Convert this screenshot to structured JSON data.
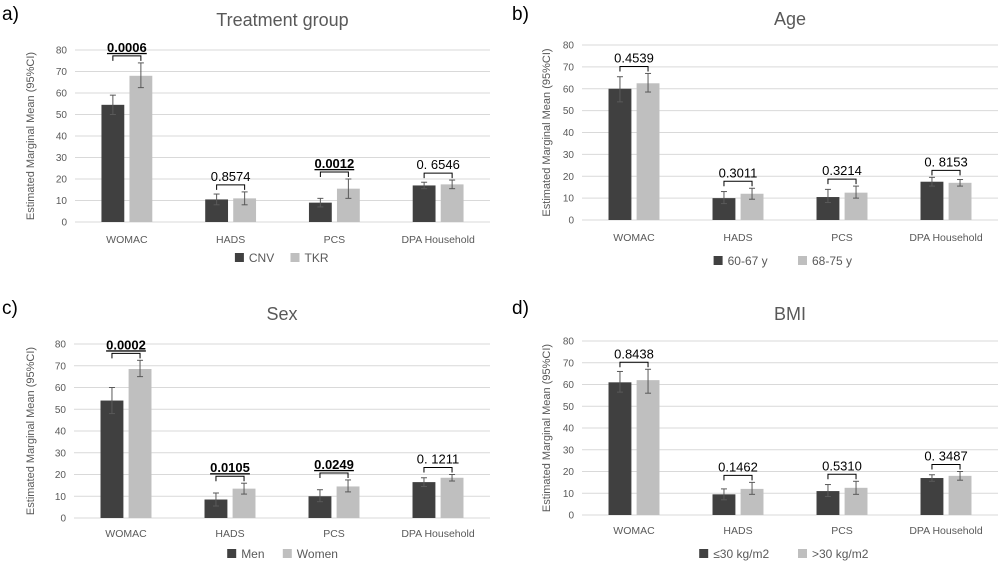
{
  "colors": {
    "series1": "#404040",
    "series2": "#bfbfbf",
    "grid": "#d9d9d9",
    "axis_text": "#595959",
    "title_text": "#595959"
  },
  "chart_data": [
    {
      "panel_label": "a)",
      "type": "bar",
      "title": "Treatment group",
      "ylabel": "Estimated Marginal Mean (95%CI)",
      "ylim": [
        0,
        80
      ],
      "yticks": [
        "0",
        "10",
        "20",
        "30",
        "40",
        "50",
        "60",
        "70",
        "80"
      ],
      "categories": [
        "WOMAC",
        "HADS",
        "PCS",
        "DPA Household"
      ],
      "series": [
        {
          "name": "CNV",
          "values": [
            54.5,
            10.5,
            9,
            17
          ],
          "ci_low": [
            50,
            8,
            7,
            15.5
          ],
          "ci_high": [
            59,
            13,
            11,
            18.5
          ]
        },
        {
          "name": "TKR",
          "values": [
            68,
            11,
            15.5,
            17.5
          ],
          "ci_low": [
            62.5,
            8,
            11,
            15.5
          ],
          "ci_high": [
            74,
            14,
            20,
            19.5
          ]
        }
      ],
      "p_values": [
        {
          "text": "0.0006",
          "bold": true
        },
        {
          "text": "0.8574",
          "bold": false
        },
        {
          "text": "0.0012",
          "bold": true
        },
        {
          "text": "0. 6546",
          "bold": false
        }
      ],
      "legend_position": "bottom"
    },
    {
      "panel_label": "b)",
      "type": "bar",
      "title": "Age",
      "ylabel": "Estimated Marginal Mean (95%CI)",
      "ylim": [
        0,
        80
      ],
      "yticks": [
        "0",
        "10",
        "20",
        "30",
        "40",
        "50",
        "60",
        "70",
        "80"
      ],
      "categories": [
        "WOMAC",
        "HADS",
        "PCS",
        "DPA Household"
      ],
      "series": [
        {
          "name": "60-67 y",
          "values": [
            60,
            10,
            10.5,
            17.5
          ],
          "ci_low": [
            54,
            7.5,
            8,
            15.5
          ],
          "ci_high": [
            65.5,
            13,
            14,
            19.5
          ]
        },
        {
          "name": "68-75 y",
          "values": [
            62.5,
            12,
            12.5,
            17
          ],
          "ci_low": [
            58.5,
            9.5,
            10,
            15.5
          ],
          "ci_high": [
            67,
            14.5,
            15.5,
            18.5
          ]
        }
      ],
      "p_values": [
        {
          "text": "0.4539",
          "bold": false
        },
        {
          "text": "0.3011",
          "bold": false
        },
        {
          "text": "0.3214",
          "bold": false
        },
        {
          "text": "0. 8153",
          "bold": false
        }
      ],
      "legend_position": "bottom"
    },
    {
      "panel_label": "c)",
      "type": "bar",
      "title": "Sex",
      "ylabel": "Estimated Marginal Mean (95%CI)",
      "ylim": [
        0,
        80
      ],
      "yticks": [
        "0",
        "10",
        "20",
        "30",
        "40",
        "50",
        "60",
        "70",
        "80"
      ],
      "categories": [
        "WOMAC",
        "HADS",
        "PCS",
        "DPA Household"
      ],
      "series": [
        {
          "name": "Men",
          "values": [
            54,
            8.5,
            10,
            16.5
          ],
          "ci_low": [
            48,
            5.5,
            7.5,
            14.5
          ],
          "ci_high": [
            60,
            11.5,
            13,
            18.5
          ]
        },
        {
          "name": "Women",
          "values": [
            68.5,
            13.5,
            14.5,
            18.5
          ],
          "ci_low": [
            65,
            11,
            12,
            17
          ],
          "ci_high": [
            72.5,
            16,
            17.5,
            20
          ]
        }
      ],
      "p_values": [
        {
          "text": "0.0002",
          "bold": true
        },
        {
          "text": "0.0105",
          "bold": true
        },
        {
          "text": "0.0249",
          "bold": true
        },
        {
          "text": "0. 1211",
          "bold": false
        }
      ],
      "legend_position": "bottom"
    },
    {
      "panel_label": "d)",
      "type": "bar",
      "title": "BMI",
      "ylabel": "Estimated Marginal Mean (95%CI)",
      "ylim": [
        0,
        80
      ],
      "yticks": [
        "0",
        "10",
        "20",
        "30",
        "40",
        "50",
        "60",
        "70",
        "80"
      ],
      "categories": [
        "WOMAC",
        "HADS",
        "PCS",
        "DPA Household"
      ],
      "series": [
        {
          "name": "≤30 kg/m2",
          "values": [
            61,
            9.5,
            11,
            17
          ],
          "ci_low": [
            56.5,
            7,
            8.5,
            15.5
          ],
          "ci_high": [
            66,
            12,
            14,
            18.5
          ]
        },
        {
          "name": ">30 kg/m2",
          "values": [
            62,
            12,
            12.5,
            18
          ],
          "ci_low": [
            56,
            9.5,
            9.5,
            16
          ],
          "ci_high": [
            67,
            15,
            15.5,
            20
          ]
        }
      ],
      "p_values": [
        {
          "text": "0.8438",
          "bold": false
        },
        {
          "text": "0.1462",
          "bold": false
        },
        {
          "text": "0.5310",
          "bold": false
        },
        {
          "text": "0. 3487",
          "bold": false
        }
      ],
      "legend_position": "bottom"
    }
  ]
}
